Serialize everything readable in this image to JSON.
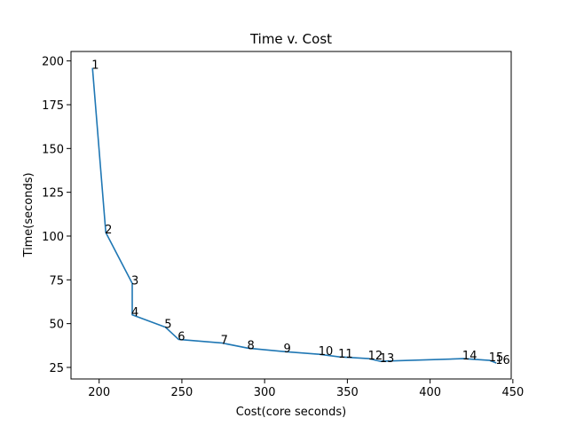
{
  "chart_data": {
    "type": "line",
    "title": "Time v. Cost",
    "xlabel": "Cost(core seconds)",
    "ylabel": "Time(seconds)",
    "xlim": [
      183,
      449
    ],
    "ylim": [
      18.4,
      205.4
    ],
    "xticks": [
      200,
      250,
      300,
      350,
      400,
      450
    ],
    "yticks": [
      25,
      50,
      75,
      100,
      125,
      150,
      175,
      200
    ],
    "grid": false,
    "series": [
      {
        "name": "",
        "color": "#1f77b4",
        "points": [
          {
            "label": "1",
            "x": 196,
            "y": 196
          },
          {
            "label": "2",
            "x": 204,
            "y": 102
          },
          {
            "label": "3",
            "x": 220,
            "y": 73
          },
          {
            "label": "4",
            "x": 220,
            "y": 55
          },
          {
            "label": "5",
            "x": 240,
            "y": 48
          },
          {
            "label": "6",
            "x": 248,
            "y": 41
          },
          {
            "label": "7",
            "x": 274,
            "y": 39
          },
          {
            "label": "8",
            "x": 290,
            "y": 36
          },
          {
            "label": "9",
            "x": 312,
            "y": 34
          },
          {
            "label": "10",
            "x": 333,
            "y": 32.5
          },
          {
            "label": "11",
            "x": 345,
            "y": 31
          },
          {
            "label": "12",
            "x": 363,
            "y": 30
          },
          {
            "label": "13",
            "x": 370,
            "y": 28.5
          },
          {
            "label": "14",
            "x": 420,
            "y": 30
          },
          {
            "label": "15",
            "x": 436,
            "y": 29
          },
          {
            "label": "16",
            "x": 440,
            "y": 27.5
          }
        ]
      }
    ]
  }
}
